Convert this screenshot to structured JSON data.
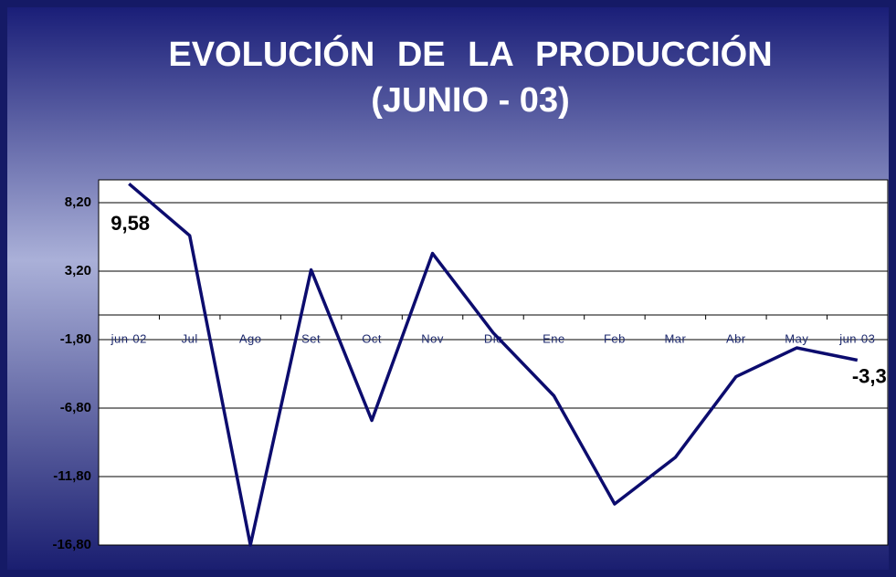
{
  "chart_data": {
    "type": "line",
    "title": "EVOLUCIÓN DE LA PRODUCCIÓN",
    "subtitle": "(JUNIO - 03)",
    "categories": [
      "jun-02",
      "Jul",
      "Ago",
      "Set",
      "Oct",
      "Nov",
      "Dic",
      "Ene",
      "Feb",
      "Mar",
      "Abr",
      "May",
      "jun-03"
    ],
    "series": [
      {
        "name": null,
        "color": "#0c0c6e",
        "values": [
          9.58,
          5.8,
          -16.8,
          3.3,
          -7.7,
          4.5,
          -1.3,
          -5.9,
          -13.8,
          -10.4,
          -4.5,
          -2.4,
          -3.3
        ],
        "value_labels": [
          "9,58",
          null,
          null,
          null,
          null,
          null,
          null,
          null,
          null,
          null,
          null,
          null,
          "-3,3"
        ]
      }
    ],
    "ylim": [
      -16.8,
      9.87
    ],
    "yticks": [
      {
        "value": -16.8,
        "label": "-16,80"
      },
      {
        "value": -11.8,
        "label": "-11,80"
      },
      {
        "value": -6.8,
        "label": "-6,80"
      },
      {
        "value": -1.8,
        "label": "-1,80"
      },
      {
        "value": 3.2,
        "label": "3,20"
      },
      {
        "value": 8.2,
        "label": "8,20"
      }
    ],
    "grid": true
  }
}
